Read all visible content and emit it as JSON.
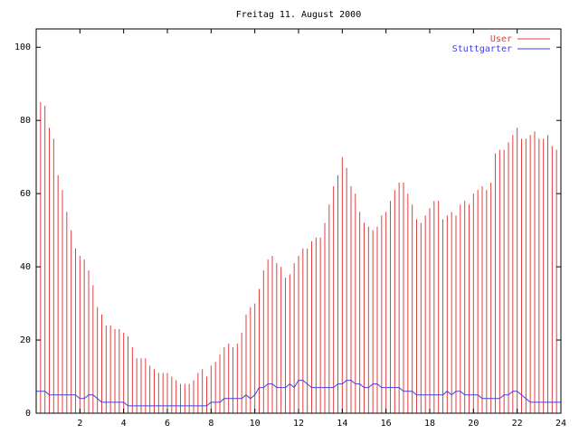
{
  "chart_data": {
    "type": "impulses",
    "title": "Freitag 11. August 2000",
    "xlim": [
      0,
      24
    ],
    "xticks": [
      2,
      4,
      6,
      8,
      10,
      12,
      14,
      16,
      18,
      20,
      22,
      24
    ],
    "ylim": [
      0,
      105
    ],
    "yticks": [
      0,
      20,
      40,
      60,
      80,
      100
    ],
    "legend": "top-right",
    "x": [
      0,
      0.2,
      0.4,
      0.6,
      0.8,
      1,
      1.2,
      1.4,
      1.6,
      1.8,
      2,
      2.2,
      2.4,
      2.6,
      2.8,
      3,
      3.2,
      3.4,
      3.6,
      3.8,
      4,
      4.2,
      4.4,
      4.6,
      4.8,
      5,
      5.2,
      5.4,
      5.6,
      5.8,
      6,
      6.2,
      6.4,
      6.6,
      6.8,
      7,
      7.2,
      7.4,
      7.6,
      7.8,
      8,
      8.2,
      8.4,
      8.6,
      8.8,
      9,
      9.2,
      9.4,
      9.6,
      9.8,
      10,
      10.2,
      10.4,
      10.6,
      10.8,
      11,
      11.2,
      11.4,
      11.6,
      11.8,
      12,
      12.2,
      12.4,
      12.6,
      12.8,
      13,
      13.2,
      13.4,
      13.6,
      13.8,
      14,
      14.2,
      14.4,
      14.6,
      14.8,
      15,
      15.2,
      15.4,
      15.6,
      15.8,
      16,
      16.2,
      16.4,
      16.6,
      16.8,
      17,
      17.2,
      17.4,
      17.6,
      17.8,
      18,
      18.2,
      18.4,
      18.6,
      18.8,
      19,
      19.2,
      19.4,
      19.6,
      19.8,
      20,
      20.2,
      20.4,
      20.6,
      20.8,
      21,
      21.2,
      21.4,
      21.6,
      21.8,
      22,
      22.2,
      22.4,
      22.6,
      22.8,
      23,
      23.2,
      23.4,
      23.6,
      23.8,
      24
    ],
    "series": [
      {
        "name": "User",
        "color": "#e04040",
        "style": "impulses",
        "values": [
          88,
          85,
          84,
          78,
          75,
          65,
          61,
          55,
          50,
          45,
          43,
          42,
          39,
          35,
          29,
          27,
          24,
          24,
          23,
          23,
          22,
          21,
          18,
          15,
          15,
          15,
          13,
          12,
          11,
          11,
          11,
          10,
          9,
          8,
          8,
          8,
          9,
          11,
          12,
          10,
          13,
          14,
          16,
          18,
          19,
          18,
          19,
          22,
          27,
          29,
          30,
          34,
          39,
          42,
          43,
          41,
          40,
          37,
          38,
          41,
          43,
          45,
          45,
          47,
          48,
          48,
          52,
          57,
          62,
          65,
          70,
          67,
          62,
          60,
          55,
          52,
          51,
          50,
          51,
          54,
          55,
          58,
          61,
          63,
          63,
          60,
          57,
          53,
          52,
          54,
          56,
          58,
          58,
          53,
          54,
          55,
          54,
          57,
          58,
          57,
          60,
          61,
          62,
          61,
          63,
          71,
          72,
          72,
          74,
          76,
          78,
          75,
          75,
          76,
          77,
          75,
          75,
          76,
          73,
          72,
          66
        ]
      },
      {
        "name": "Stuttgarter",
        "color": "#4040e0",
        "style": "line",
        "values": [
          6,
          6,
          6,
          5,
          5,
          5,
          5,
          5,
          5,
          5,
          4,
          4,
          5,
          5,
          4,
          3,
          3,
          3,
          3,
          3,
          3,
          2,
          2,
          2,
          2,
          2,
          2,
          2,
          2,
          2,
          2,
          2,
          2,
          2,
          2,
          2,
          2,
          2,
          2,
          2,
          3,
          3,
          3,
          4,
          4,
          4,
          4,
          4,
          5,
          4,
          5,
          7,
          7,
          8,
          8,
          7,
          7,
          7,
          8,
          7,
          9,
          9,
          8,
          7,
          7,
          7,
          7,
          7,
          7,
          8,
          8,
          9,
          9,
          8,
          8,
          7,
          7,
          8,
          8,
          7,
          7,
          7,
          7,
          7,
          6,
          6,
          6,
          5,
          5,
          5,
          5,
          5,
          5,
          5,
          6,
          5,
          6,
          6,
          5,
          5,
          5,
          5,
          4,
          4,
          4,
          4,
          4,
          5,
          5,
          6,
          6,
          5,
          4,
          3,
          3,
          3,
          3,
          3,
          3,
          3,
          3
        ]
      }
    ]
  }
}
